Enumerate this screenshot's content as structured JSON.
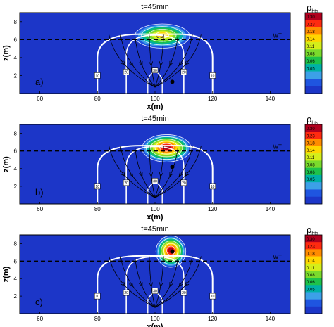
{
  "chart_data": [
    {
      "type": "heatmap",
      "panel_label": "a)",
      "title": "t=45min",
      "xlabel": "x(m)",
      "ylabel": "z(m)",
      "xlim": [
        53,
        147
      ],
      "ylim": [
        0,
        9
      ],
      "xticks": [
        60,
        80,
        100,
        120,
        140
      ],
      "yticks": [
        2,
        4,
        6,
        8
      ],
      "water_table": {
        "z": 6,
        "label": "WT"
      },
      "plume": {
        "cx": 102.5,
        "cz": 6.4,
        "rx": 9.5,
        "rz": 1.35,
        "peak": 0.2,
        "label": "0.2"
      },
      "colorbar": {
        "label_main": "ρ",
        "label_sub": "hts",
        "ticks": [
          "0.30",
          "0.23",
          "0.18",
          "0.14",
          "0.11",
          "0.08",
          "0.06",
          "0.05"
        ],
        "colors": [
          "#b0001e",
          "#ff2a10",
          "#ff8c00",
          "#ffd600",
          "#d4ee1a",
          "#7ada2c",
          "#1ec24a",
          "#00b0a6",
          "#3ca0e8",
          "#1f55e0",
          "#1c36c8"
        ]
      },
      "flow_labels": [
        "10",
        "20",
        "30",
        "20",
        "10"
      ],
      "well": {
        "x": 106,
        "z": 1.3
      },
      "ignition_marker": "a"
    },
    {
      "type": "heatmap",
      "panel_label": "b)",
      "title": "t=45min",
      "xlabel": "x(m)",
      "ylabel": "z(m)",
      "xlim": [
        53,
        147
      ],
      "ylim": [
        0,
        9
      ],
      "xticks": [
        60,
        80,
        100,
        120,
        140
      ],
      "yticks": [
        2,
        4,
        6,
        8
      ],
      "water_table": {
        "z": 6,
        "label": "WT"
      },
      "plume": {
        "cx": 104,
        "cz": 6.3,
        "rx": 8.5,
        "rz": 1.55,
        "peak": 0.3
      },
      "colorbar": {
        "label_main": "ρ",
        "label_sub": "hts",
        "ticks": [
          "0.30",
          "0.23",
          "0.18",
          "0.14",
          "0.11",
          "0.08",
          "0.06",
          "0.05"
        ],
        "colors": [
          "#b0001e",
          "#ff2a10",
          "#ff8c00",
          "#ffd600",
          "#d4ee1a",
          "#7ada2c",
          "#1ec24a",
          "#00b0a6",
          "#3ca0e8",
          "#1f55e0",
          "#1c36c8"
        ]
      },
      "flow_labels": [
        "10",
        "20",
        "30",
        "20",
        "10"
      ],
      "well": {
        "x": 106,
        "z": 4.2
      }
    },
    {
      "type": "heatmap",
      "panel_label": "c)",
      "title": "t=45min",
      "xlabel": "x(m)",
      "ylabel": "z(m)",
      "xlim": [
        53,
        147
      ],
      "ylim": [
        0,
        9
      ],
      "xticks": [
        60,
        80,
        100,
        120,
        140
      ],
      "yticks": [
        2,
        4,
        6,
        8
      ],
      "water_table": {
        "z": 6,
        "label": "WT"
      },
      "plume": {
        "cx": 105.5,
        "cz": 7.1,
        "rx": 5.2,
        "rz": 1.8,
        "peak": 0.3
      },
      "colorbar": {
        "label_main": "ρ",
        "label_sub": "hts",
        "ticks": [
          "0.30",
          "0.23",
          "0.18",
          "0.14",
          "0.11",
          "0.08",
          "0.06",
          "0.05"
        ],
        "colors": [
          "#b0001e",
          "#ff2a10",
          "#ff8c00",
          "#ffd600",
          "#d4ee1a",
          "#7ada2c",
          "#1ec24a",
          "#00b0a6",
          "#3ca0e8",
          "#1f55e0",
          "#1c36c8"
        ]
      },
      "flow_labels": [
        "10",
        "20",
        "30",
        "20",
        "10"
      ],
      "well": {
        "x": 106,
        "z": 7.1
      }
    }
  ],
  "colors": {
    "background": "#1c36c8",
    "streamline": "#ffffff",
    "arrows": "#000000"
  }
}
